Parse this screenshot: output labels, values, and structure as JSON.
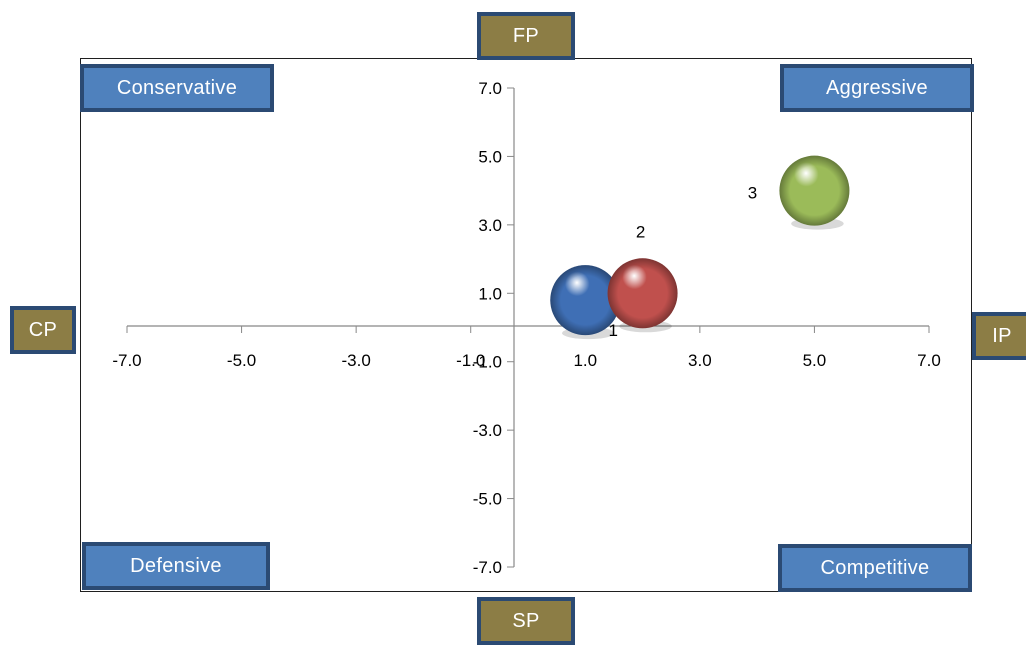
{
  "chart_data": {
    "type": "scatter",
    "xlim": [
      -7,
      7
    ],
    "ylim": [
      -7,
      7
    ],
    "x_ticks": [
      -7,
      -5,
      -3,
      -1,
      1,
      3,
      5,
      7
    ],
    "y_ticks": [
      -7,
      -5,
      -3,
      -1,
      1,
      3,
      5,
      7
    ],
    "x_tick_labels": [
      "-7.0",
      "-5.0",
      "-3.0",
      "-1.0",
      "1.0",
      "3.0",
      "5.0",
      "7.0"
    ],
    "y_tick_labels": [
      "-7.0",
      "-5.0",
      "-3.0",
      "-1.0",
      "1.0",
      "3.0",
      "5.0",
      "7.0"
    ],
    "grid": false,
    "points": [
      {
        "label": "1",
        "x": 1.0,
        "y": 0.8,
        "color": "#3f6fb5"
      },
      {
        "label": "2",
        "x": 2.0,
        "y": 1.0,
        "color": "#c0504d"
      },
      {
        "label": "3",
        "x": 5.0,
        "y": 4.0,
        "color": "#9bbb59"
      }
    ],
    "axis_labels": {
      "top": "FP",
      "bottom": "SP",
      "left": "CP",
      "right": "IP"
    },
    "quadrant_labels": {
      "top_left": "Conservative",
      "top_right": "Aggressive",
      "bottom_left": "Defensive",
      "bottom_right": "Competitive"
    }
  },
  "colors": {
    "box_blue": "#4f81bd",
    "box_olive": "#8c7d45",
    "box_border": "#2b4a73"
  }
}
